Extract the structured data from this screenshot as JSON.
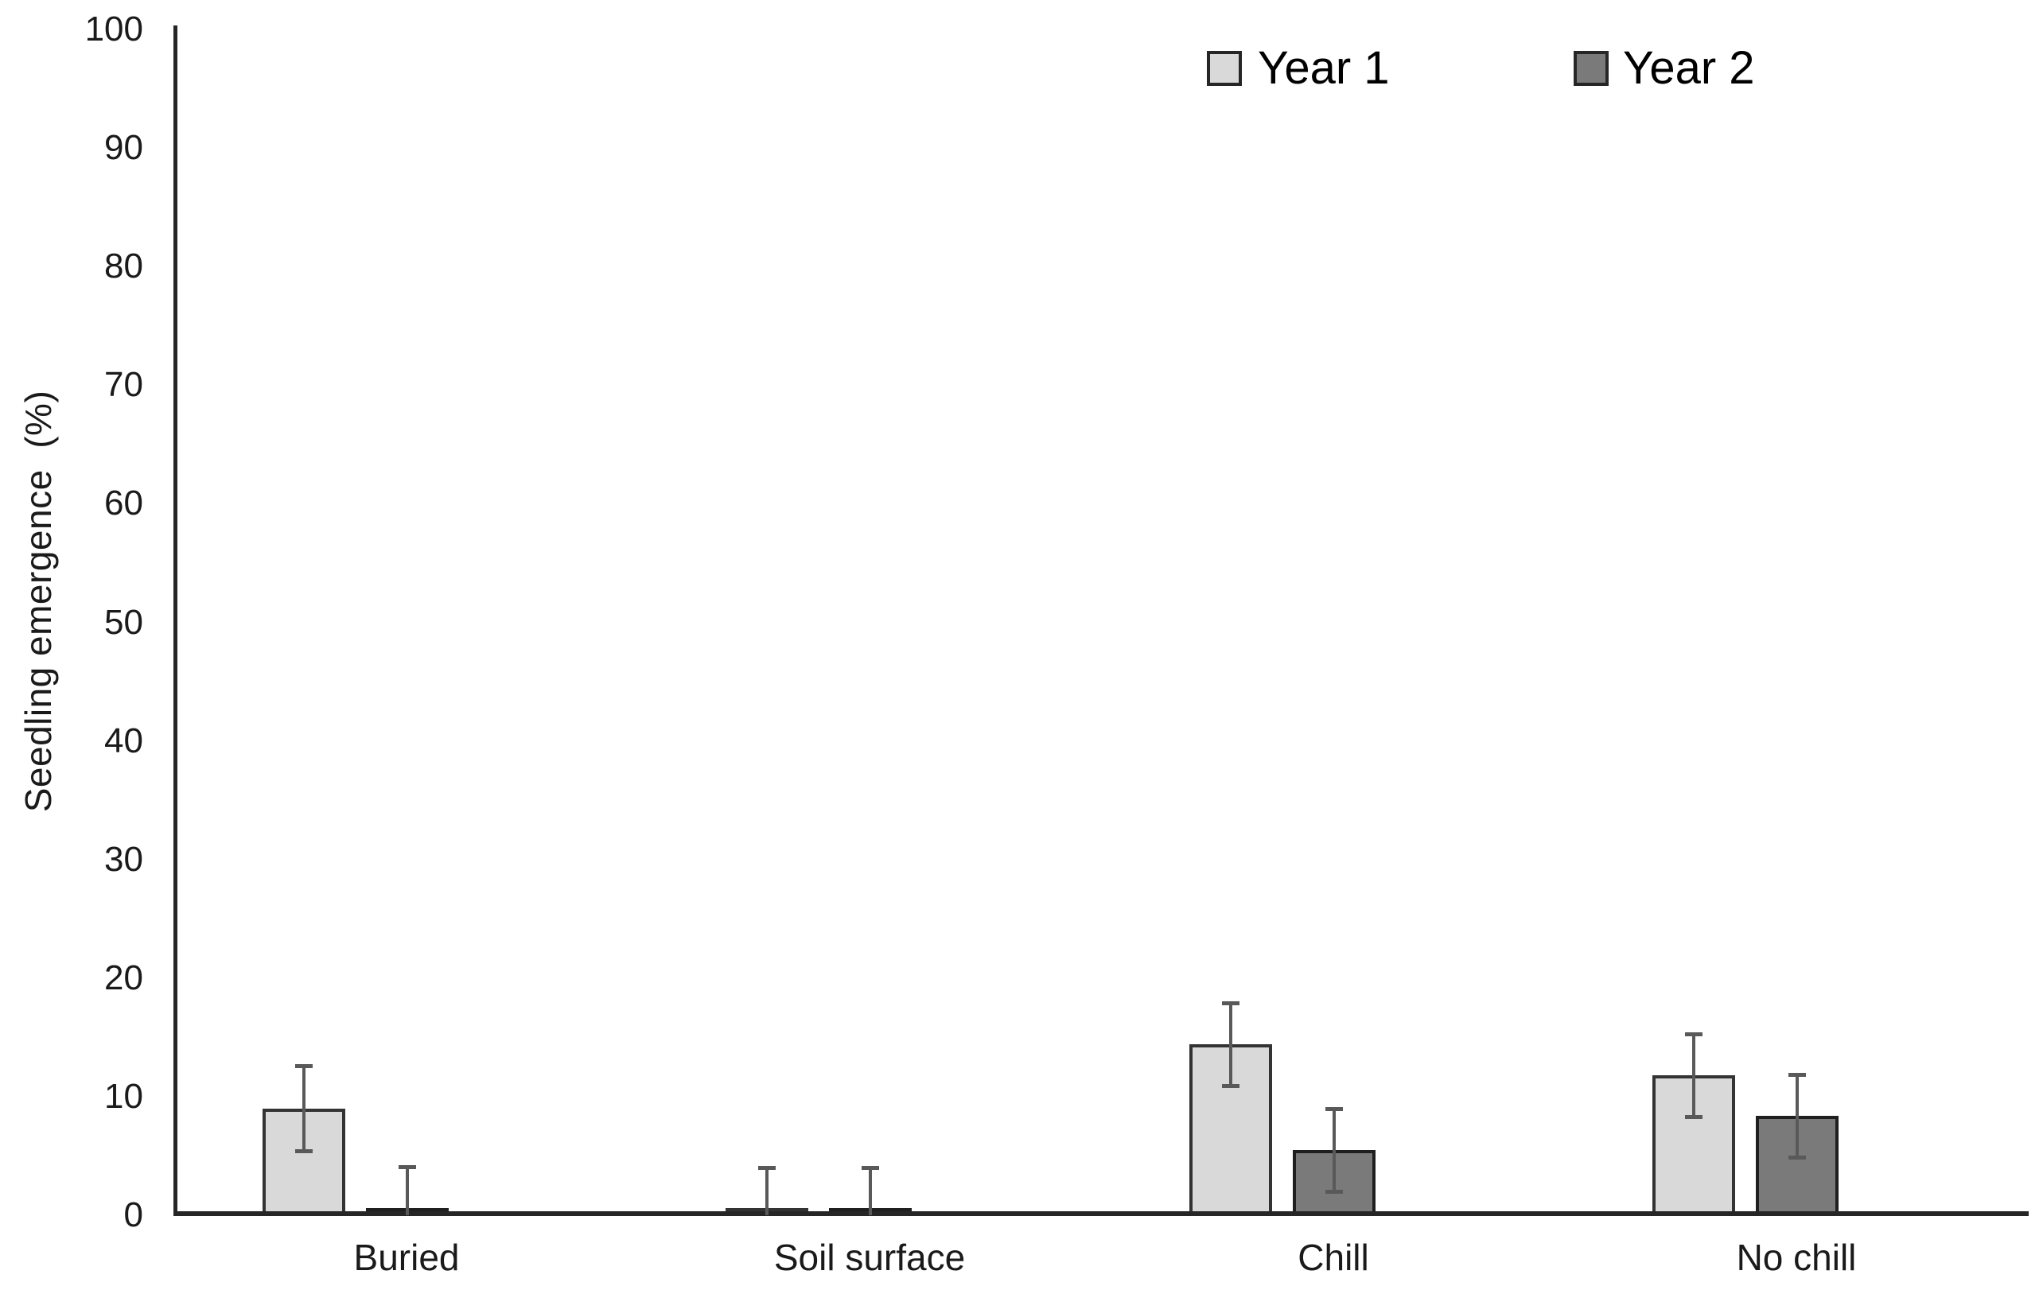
{
  "chart_data": {
    "type": "bar",
    "title": "",
    "xlabel": "",
    "ylabel": "Seedling emergence  (%)",
    "ylim": [
      0,
      100
    ],
    "yticks": [
      0,
      10,
      20,
      30,
      40,
      50,
      60,
      70,
      80,
      90,
      100
    ],
    "categories": [
      "Buried",
      "Soil surface",
      "Chill",
      "No chill"
    ],
    "series": [
      {
        "name": "Year 1",
        "color": "#d9d9d9",
        "border_color": "#333333",
        "values": [
          9.0,
          0.5,
          14.4,
          11.8
        ],
        "errors": [
          3.6,
          3.5,
          3.5,
          3.5
        ]
      },
      {
        "name": "Year 2",
        "color": "#7a7a7a",
        "border_color": "#1f1f1f",
        "values": [
          0.6,
          0.4,
          5.5,
          8.4
        ],
        "errors": [
          3.5,
          3.6,
          3.5,
          3.5
        ]
      }
    ],
    "error_bars": true,
    "error_bar_color": "#595959",
    "grid": false,
    "legend_position": "top-right",
    "background": "#ffffff",
    "axis_color": "#262626"
  }
}
